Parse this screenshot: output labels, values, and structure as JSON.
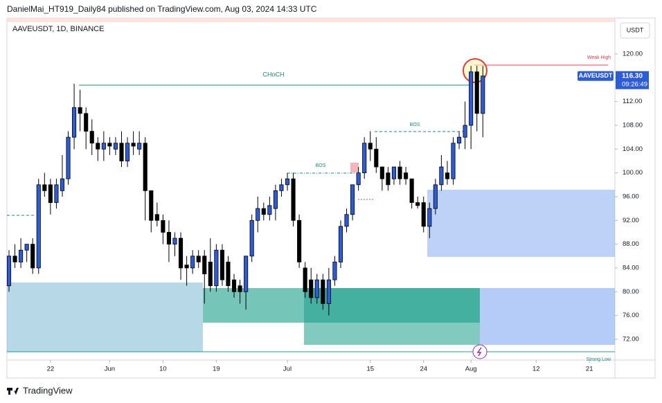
{
  "header": "DanielMai_HT919_Daily84 published on TradingView.com, Aug 03, 2024 14:33 UTC",
  "footer": "TradingView",
  "chart_data": {
    "type": "candlestick",
    "title": "AAVEUSDT, 1D, BINANCE",
    "currency": "USDT",
    "symbol": "AAVEUSDT",
    "last_price": {
      "value": 116.3,
      "label": "116.30"
    },
    "countdown": "09:26:49",
    "annotations": {
      "choch": "CHoCH",
      "bos1": "BOS",
      "bos2": "BOS",
      "weak_high": "Weak High",
      "strong_low": "Strong Low"
    },
    "up_color": "#2e5bd6",
    "down_color": "#000000",
    "x": [
      0,
      1,
      2,
      3,
      4,
      5,
      6,
      7,
      8,
      9,
      10,
      11,
      12,
      13,
      14,
      15,
      16,
      17,
      18,
      19,
      20,
      21,
      22,
      23,
      24,
      25,
      26,
      27,
      28,
      29,
      30,
      31,
      32,
      33,
      34,
      35,
      36,
      37,
      38,
      39,
      40,
      41,
      42,
      43,
      44,
      45,
      46,
      47,
      48,
      49,
      50,
      51,
      52,
      53,
      54,
      55,
      56,
      57,
      58,
      59,
      60,
      61,
      62,
      63,
      64,
      65,
      66,
      67,
      68,
      69,
      70,
      71,
      72,
      73,
      74,
      75,
      76,
      77,
      78,
      79,
      80
    ],
    "open": [
      81,
      86,
      85,
      87,
      88,
      84,
      98,
      98,
      95,
      97,
      99,
      106,
      111,
      110,
      107,
      105,
      104,
      105,
      104,
      105,
      102,
      105,
      104,
      105,
      97,
      93,
      92,
      90,
      88,
      89,
      84.5,
      84,
      86,
      86,
      85,
      81,
      87,
      85,
      82,
      81,
      80,
      86,
      92,
      94,
      93,
      94,
      97,
      98,
      99,
      92,
      84,
      82,
      79,
      82,
      78,
      82,
      85,
      91,
      93,
      98,
      100,
      105,
      104,
      101,
      100,
      99,
      101,
      100,
      99,
      95,
      95,
      91,
      94,
      98,
      100,
      99,
      105,
      106,
      108,
      117,
      110
    ],
    "high": [
      87,
      88,
      89,
      88,
      89,
      99,
      100,
      99,
      99,
      103,
      107,
      115,
      114,
      111,
      109,
      106,
      107,
      106,
      106,
      107,
      106,
      107,
      107,
      106,
      97,
      95,
      93,
      92,
      90,
      90,
      86,
      87,
      87,
      87,
      89,
      88,
      88,
      86,
      83,
      82,
      86,
      93,
      96,
      95,
      96,
      98,
      99,
      100,
      100,
      93,
      85,
      84,
      83,
      83,
      84,
      86,
      92,
      94,
      98,
      101,
      106,
      107,
      106,
      101,
      101,
      101,
      102,
      101,
      99,
      96,
      96,
      95,
      99,
      103,
      102,
      106,
      107,
      112,
      118,
      118,
      118
    ],
    "low": [
      80,
      84,
      84,
      85,
      83,
      83,
      96,
      93,
      94,
      96,
      98,
      104,
      107,
      104,
      103,
      102,
      102,
      103,
      103,
      101,
      101,
      103,
      103,
      92,
      90,
      91,
      88,
      85,
      86,
      82,
      81,
      83,
      84,
      78,
      80,
      80,
      81,
      80,
      79,
      78,
      77,
      85,
      90,
      92,
      92,
      92,
      96,
      97,
      91,
      84,
      79,
      78,
      78,
      77,
      76,
      81,
      84,
      90,
      92,
      97,
      99,
      102,
      100,
      97,
      97,
      98,
      98,
      98,
      94,
      94,
      90,
      89,
      93,
      97,
      98,
      98,
      104,
      104,
      104,
      107,
      106
    ],
    "close": [
      86,
      85,
      87,
      88,
      84,
      98,
      97,
      95,
      98,
      99,
      106,
      111,
      110,
      107,
      105,
      104,
      105,
      104.5,
      105,
      102,
      105,
      104.5,
      105,
      97,
      92,
      92,
      90,
      88,
      89,
      84,
      84,
      86,
      85,
      83,
      81,
      87,
      82,
      81,
      80,
      80,
      86,
      92,
      94,
      93,
      94.5,
      97,
      98,
      99,
      92,
      85,
      80,
      79,
      82,
      78,
      82,
      85,
      91,
      93,
      98,
      100,
      105,
      104,
      101,
      99,
      98,
      101,
      99,
      99,
      95,
      94.5,
      91,
      94,
      98,
      101,
      99,
      105,
      106,
      108,
      117,
      110,
      116.3
    ],
    "xlim": [
      -0.35,
      102.3
    ],
    "xticks": [
      {
        "value": 7,
        "label": "22"
      },
      {
        "value": 17,
        "label": "Jun"
      },
      {
        "value": 26,
        "label": "10"
      },
      {
        "value": 35,
        "label": "19"
      },
      {
        "value": 47,
        "label": "Jul"
      },
      {
        "value": 61,
        "label": "15"
      },
      {
        "value": 70,
        "label": "24"
      },
      {
        "value": 78,
        "label": "Aug"
      },
      {
        "value": 89,
        "label": "12"
      },
      {
        "value": 98,
        "label": "21"
      }
    ],
    "ylim": [
      68.5,
      125.36
    ],
    "yticks": [
      {
        "value": 72,
        "label": "72.00"
      },
      {
        "value": 76,
        "label": "76.00"
      },
      {
        "value": 80,
        "label": "80.00"
      },
      {
        "value": 84,
        "label": "84.00"
      },
      {
        "value": 88,
        "label": "88.00"
      },
      {
        "value": 92,
        "label": "92.00"
      },
      {
        "value": 96,
        "label": "96.00"
      },
      {
        "value": 100,
        "label": "100.00"
      },
      {
        "value": 104,
        "label": "104.00"
      },
      {
        "value": 108,
        "label": "108.00"
      },
      {
        "value": 112,
        "label": "112.00"
      },
      {
        "value": 116,
        "label": "116.00"
      },
      {
        "value": 120,
        "label": "120.00"
      }
    ]
  }
}
